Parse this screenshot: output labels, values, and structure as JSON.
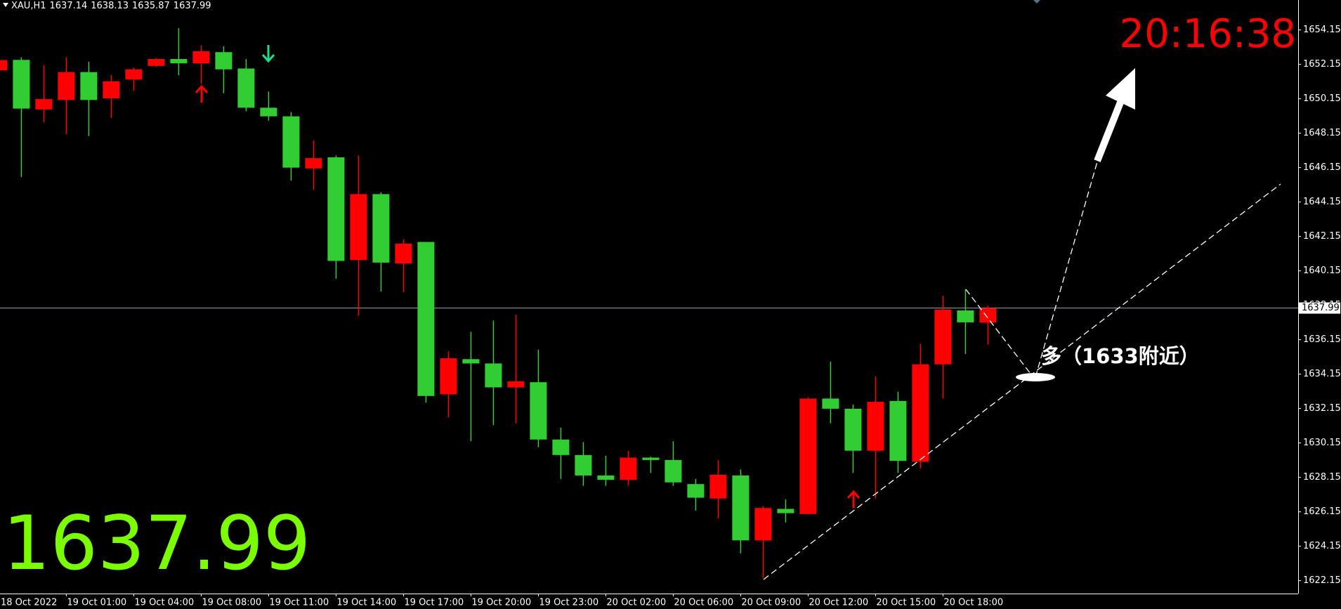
{
  "chart_data": {
    "type": "candlestick",
    "symbol": "XAU,H1",
    "clock": "20:16:38",
    "annotation": "多（1633附近）",
    "up_color": "#ff0000",
    "down_color": "#32cd32",
    "categories": [
      "18 Oct 2022",
      null,
      null,
      "19 Oct 01:00",
      null,
      null,
      "19 Oct 04:00",
      null,
      null,
      "19 Oct 08:00",
      null,
      null,
      "19 Oct 11:00",
      null,
      null,
      "19 Oct 14:00",
      null,
      null,
      "19 Oct 17:00",
      null,
      null,
      "19 Oct 20:00",
      null,
      null,
      "19 Oct 23:00",
      null,
      null,
      "20 Oct 02:00",
      null,
      null,
      "20 Oct 06:00",
      null,
      null,
      "20 Oct 09:00",
      null,
      null,
      "20 Oct 12:00",
      null,
      null,
      "20 Oct 15:00",
      null,
      null,
      "20 Oct 18:00",
      null,
      null
    ],
    "open": [
      1651.8,
      1652.41,
      1649.53,
      1650.08,
      1651.7,
      1650.17,
      1651.27,
      1652.06,
      1652.46,
      1652.21,
      1652.86,
      1651.91,
      1649.63,
      1649.13,
      1646.1,
      1646.75,
      1640.78,
      1644.61,
      1640.58,
      1641.83,
      1632.98,
      1635.02,
      1634.77,
      1633.38,
      1633.68,
      1630.35,
      1629.45,
      1628.26,
      1628.01,
      1629.3,
      1629.16,
      1627.76,
      1626.92,
      1628.26,
      1624.49,
      1626.32,
      1626.02,
      1632.73,
      1632.14,
      1629.7,
      1632.59,
      1629.06,
      1634.72,
      1637.85,
      1637.14
    ],
    "high": [
      1652.6,
      1652.56,
      1652.1,
      1652.56,
      1652.31,
      1651.52,
      1651.96,
      1652.51,
      1654.25,
      1653.26,
      1653.2,
      1652.46,
      1650.57,
      1649.38,
      1647.74,
      1646.85,
      1646.85,
      1644.71,
      1641.98,
      1641.83,
      1635.47,
      1636.61,
      1637.26,
      1637.6,
      1635.57,
      1631.04,
      1630.2,
      1629.4,
      1629.7,
      1629.35,
      1630.25,
      1628.06,
      1629.15,
      1628.61,
      1626.47,
      1626.87,
      1632.8,
      1634.87,
      1632.39,
      1634.03,
      1633.13,
      1635.91,
      1638.7,
      1639.09,
      1638.13
    ],
    "low": [
      1651.5,
      1645.6,
      1648.78,
      1648.09,
      1647.99,
      1649.03,
      1650.62,
      1652.0,
      1651.52,
      1651.02,
      1650.47,
      1649.43,
      1648.88,
      1645.4,
      1644.86,
      1639.69,
      1637.55,
      1638.95,
      1638.9,
      1632.49,
      1631.64,
      1630.25,
      1631.19,
      1631.29,
      1629.9,
      1628.06,
      1627.66,
      1627.66,
      1627.66,
      1628.41,
      1627.66,
      1626.22,
      1625.78,
      1623.74,
      1622.3,
      1625.53,
      1626.02,
      1631.29,
      1628.41,
      1626.92,
      1628.41,
      1628.66,
      1632.73,
      1635.32,
      1635.87
    ],
    "close": [
      1652.4,
      1649.58,
      1650.13,
      1651.7,
      1650.08,
      1651.17,
      1651.86,
      1652.46,
      1652.21,
      1652.91,
      1651.86,
      1649.63,
      1649.13,
      1646.15,
      1646.7,
      1640.73,
      1644.61,
      1640.63,
      1641.73,
      1632.88,
      1635.07,
      1634.77,
      1633.38,
      1633.73,
      1630.35,
      1629.45,
      1628.26,
      1628.01,
      1629.3,
      1629.16,
      1627.86,
      1626.97,
      1628.31,
      1624.49,
      1626.37,
      1626.07,
      1632.73,
      1632.14,
      1629.7,
      1632.54,
      1629.11,
      1634.72,
      1637.9,
      1637.16,
      1637.99
    ],
    "ylim": [
      1621.4,
      1655.89
    ],
    "yticks": [
      1622.15,
      1624.15,
      1626.15,
      1628.15,
      1630.15,
      1632.15,
      1634.15,
      1636.15,
      1638.15,
      1640.15,
      1642.15,
      1644.15,
      1646.15,
      1648.15,
      1650.15,
      1652.15,
      1654.15
    ]
  }
}
